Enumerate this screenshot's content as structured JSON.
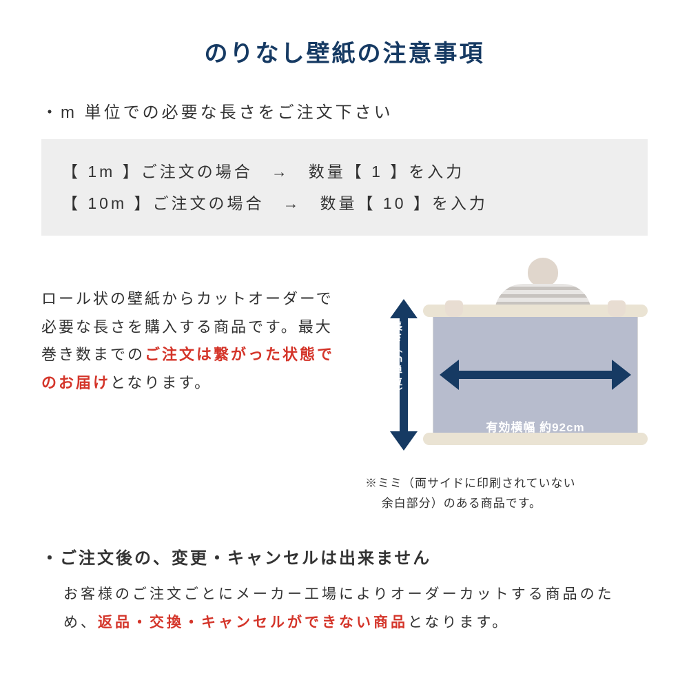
{
  "colors": {
    "navy": "#163a63",
    "text": "#333333",
    "red": "#d4352a",
    "box_bg": "#eeeeee",
    "sheet": "#b7bccd",
    "roll_edge": "#eae3d3",
    "arrow_text": "#ffffff"
  },
  "title": "のりなし壁紙の注意事項",
  "section1": {
    "heading": "・m 単位での必要な長さをご注文下さい",
    "example_line1": "【 1m 】ご注文の場合　→　数量【 1 】を入力",
    "example_line2": "【 10m 】ご注文の場合　→　数量【 10 】を入力",
    "body_plain1": "ロール状の壁紙からカットオーダーで必要な長さを購入する商品です。最大巻き数までの",
    "body_red": "ご注文は繋がった状態でのお届け",
    "body_plain2": "となります。"
  },
  "diagram": {
    "vertical_label": "長さ（ｍ単位）",
    "width_label": "有効横幅 約92cm",
    "footnote": "※ミミ（両サイドに印刷されていない\n　 余白部分）のある商品です。"
  },
  "section2": {
    "heading": "・ご注文後の、変更・キャンセルは出来ません",
    "body_plain1": "お客様のご注文ごとにメーカー工場によりオーダーカットする商品のため、",
    "body_red": "返品・交換・キャンセルができない商品",
    "body_plain2": "となります。"
  }
}
